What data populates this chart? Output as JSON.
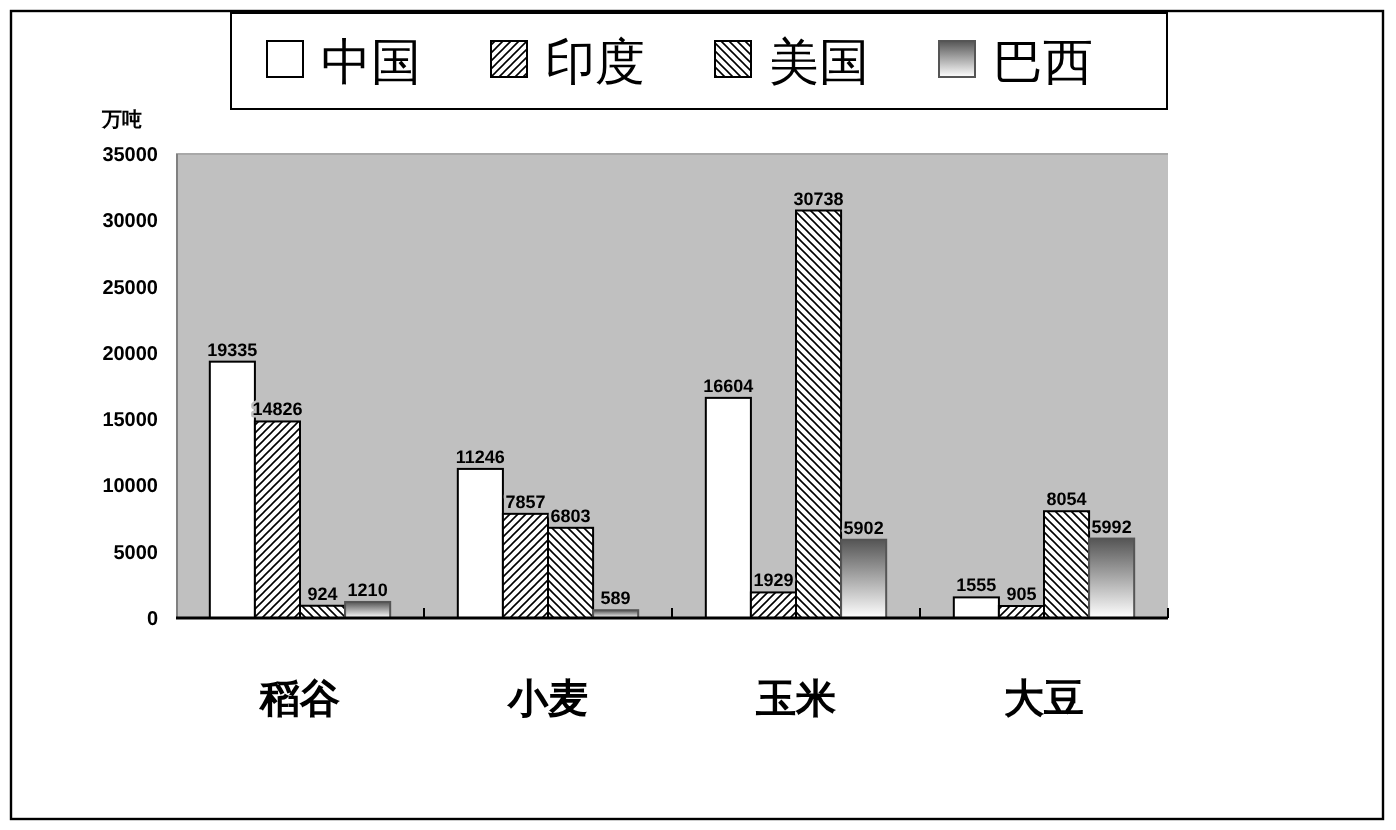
{
  "chart_data": {
    "type": "bar",
    "ylabel": "万吨",
    "categories": [
      "稻谷",
      "小麦",
      "玉米",
      "大豆"
    ],
    "series": [
      {
        "name": "中国",
        "color": "#ffffff",
        "values": [
          19335,
          11246,
          16604,
          1555
        ]
      },
      {
        "name": "印度",
        "color": "#000000",
        "values": [
          14826,
          7857,
          1929,
          905
        ]
      },
      {
        "name": "美国",
        "color": "#000000",
        "values": [
          924,
          6803,
          30738,
          8054
        ]
      },
      {
        "name": "巴西",
        "color": "#555555",
        "values": [
          1210,
          589,
          5902,
          5992
        ]
      }
    ],
    "ylim": [
      0,
      35000
    ],
    "yticks": [
      0,
      5000,
      10000,
      15000,
      20000,
      25000,
      30000,
      35000
    ],
    "data_labels": true,
    "legend": "top"
  }
}
